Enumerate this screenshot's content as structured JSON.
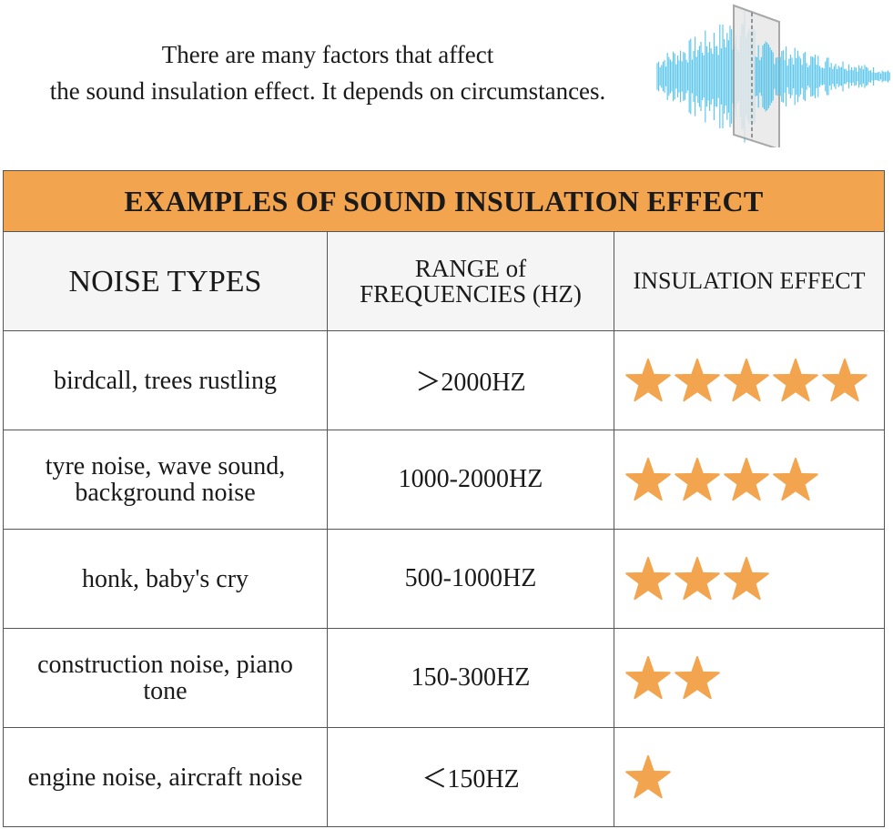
{
  "intro": {
    "line1": "There are many factors that affect",
    "line2": "the sound insulation effect. It depends on circumstances."
  },
  "graphic": {
    "icon": "sound-wave-through-glass-icon",
    "wave_color": "#4fc3ea",
    "panel_color": "#d9d9d9"
  },
  "table": {
    "title": "EXAMPLES OF SOUND INSULATION EFFECT",
    "title_bg": "#f2a54e",
    "star_color": "#f2a54e",
    "headers": {
      "noise_types": "NOISE TYPES",
      "range": "RANGE of FREQUENCIES (HZ)",
      "effect": "INSULATION EFFECT"
    },
    "rows": [
      {
        "noise": "birdcall, trees rustling",
        "range": "＞2000HZ",
        "stars": 5
      },
      {
        "noise": "tyre noise, wave sound, background noise",
        "range": "1000-2000HZ",
        "stars": 4
      },
      {
        "noise": "honk, baby's cry",
        "range": "500-1000HZ",
        "stars": 3
      },
      {
        "noise": "construction noise, piano tone",
        "range": "150-300HZ",
        "stars": 2
      },
      {
        "noise": "engine noise, aircraft noise",
        "range": "＜150HZ",
        "stars": 1
      }
    ]
  }
}
